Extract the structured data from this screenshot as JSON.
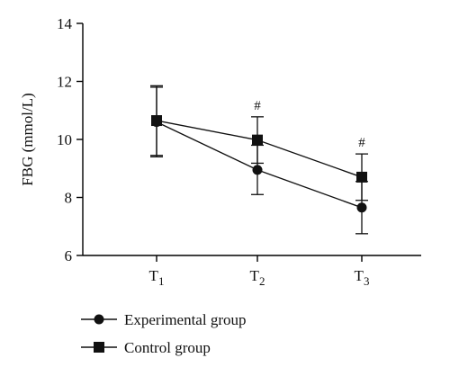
{
  "chart_data": {
    "type": "line",
    "title": "",
    "xlabel": "",
    "ylabel": "FBG (mmol/L)",
    "ylim": [
      6,
      14
    ],
    "yticks": [
      6,
      8,
      10,
      12,
      14
    ],
    "categories": [
      {
        "base": "T",
        "sub": "1"
      },
      {
        "base": "T",
        "sub": "2"
      },
      {
        "base": "T",
        "sub": "3"
      }
    ],
    "series": [
      {
        "name": "Experimental group",
        "marker": "circle",
        "values": [
          10.6,
          8.95,
          7.65
        ],
        "errors": [
          1.2,
          0.85,
          0.9
        ]
      },
      {
        "name": "Control group",
        "marker": "square",
        "values": [
          10.65,
          9.98,
          8.7
        ],
        "errors": [
          1.2,
          0.8,
          0.8
        ]
      }
    ],
    "annotations": [
      {
        "category_index": 1,
        "text": "#"
      },
      {
        "category_index": 2,
        "text": "#"
      }
    ],
    "grid": false,
    "legend_position": "bottom-left",
    "colors": {
      "ink": "#111111"
    }
  }
}
